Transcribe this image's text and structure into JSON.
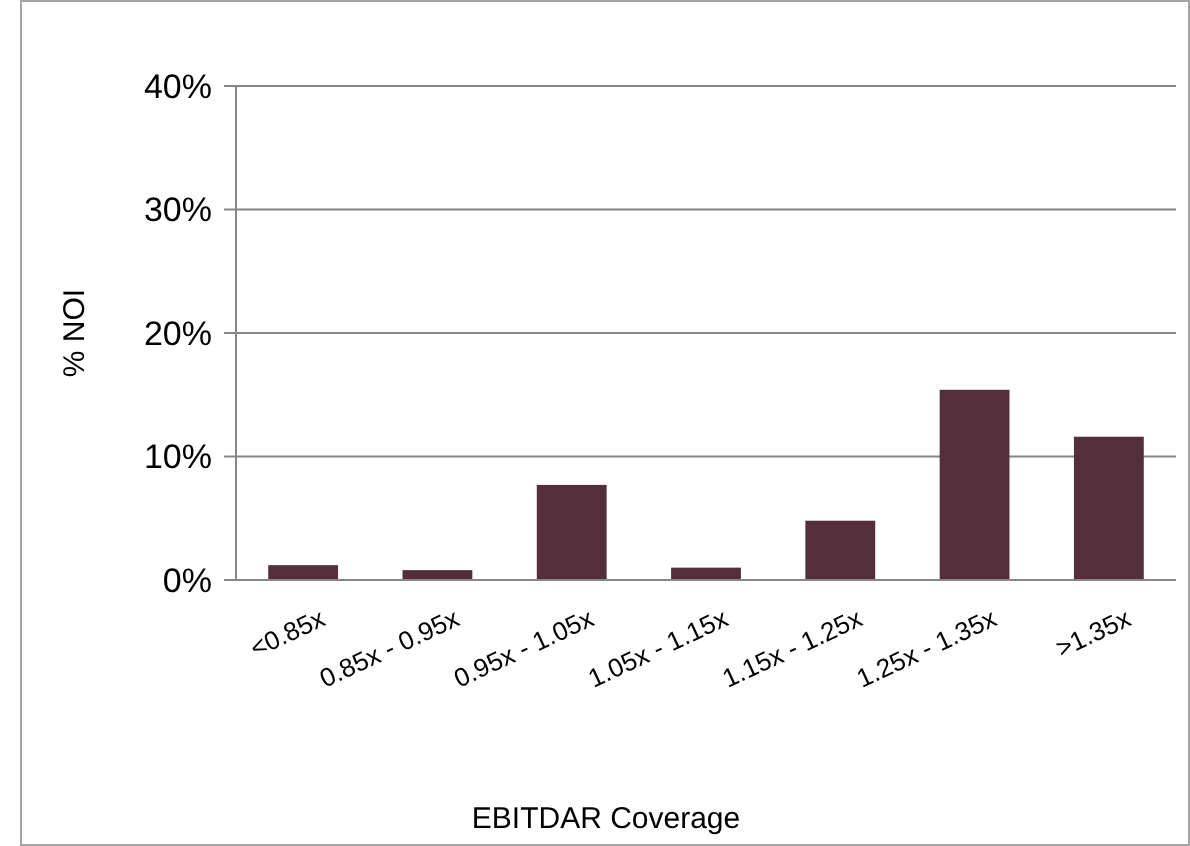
{
  "chart_data": {
    "type": "bar",
    "xlabel": "EBITDAR Coverage",
    "ylabel": "% NOI",
    "categories": [
      "<0.85x",
      "0.85x - 0.95x",
      "0.95x - 1.05x",
      "1.05x - 1.15x",
      "1.15x - 1.25x",
      "1.25x - 1.35x",
      ">1.35x"
    ],
    "values": [
      1.2,
      0.8,
      7.7,
      1.0,
      4.8,
      15.4,
      11.6
    ],
    "color": "#532f3b",
    "ylim": [
      0,
      40
    ],
    "yticks": [
      {
        "value": 0,
        "label": "0%"
      },
      {
        "value": 10,
        "label": "10%"
      },
      {
        "value": 20,
        "label": "20%"
      },
      {
        "value": 30,
        "label": "30%"
      },
      {
        "value": 40,
        "label": "40%"
      }
    ],
    "grid": "y"
  }
}
